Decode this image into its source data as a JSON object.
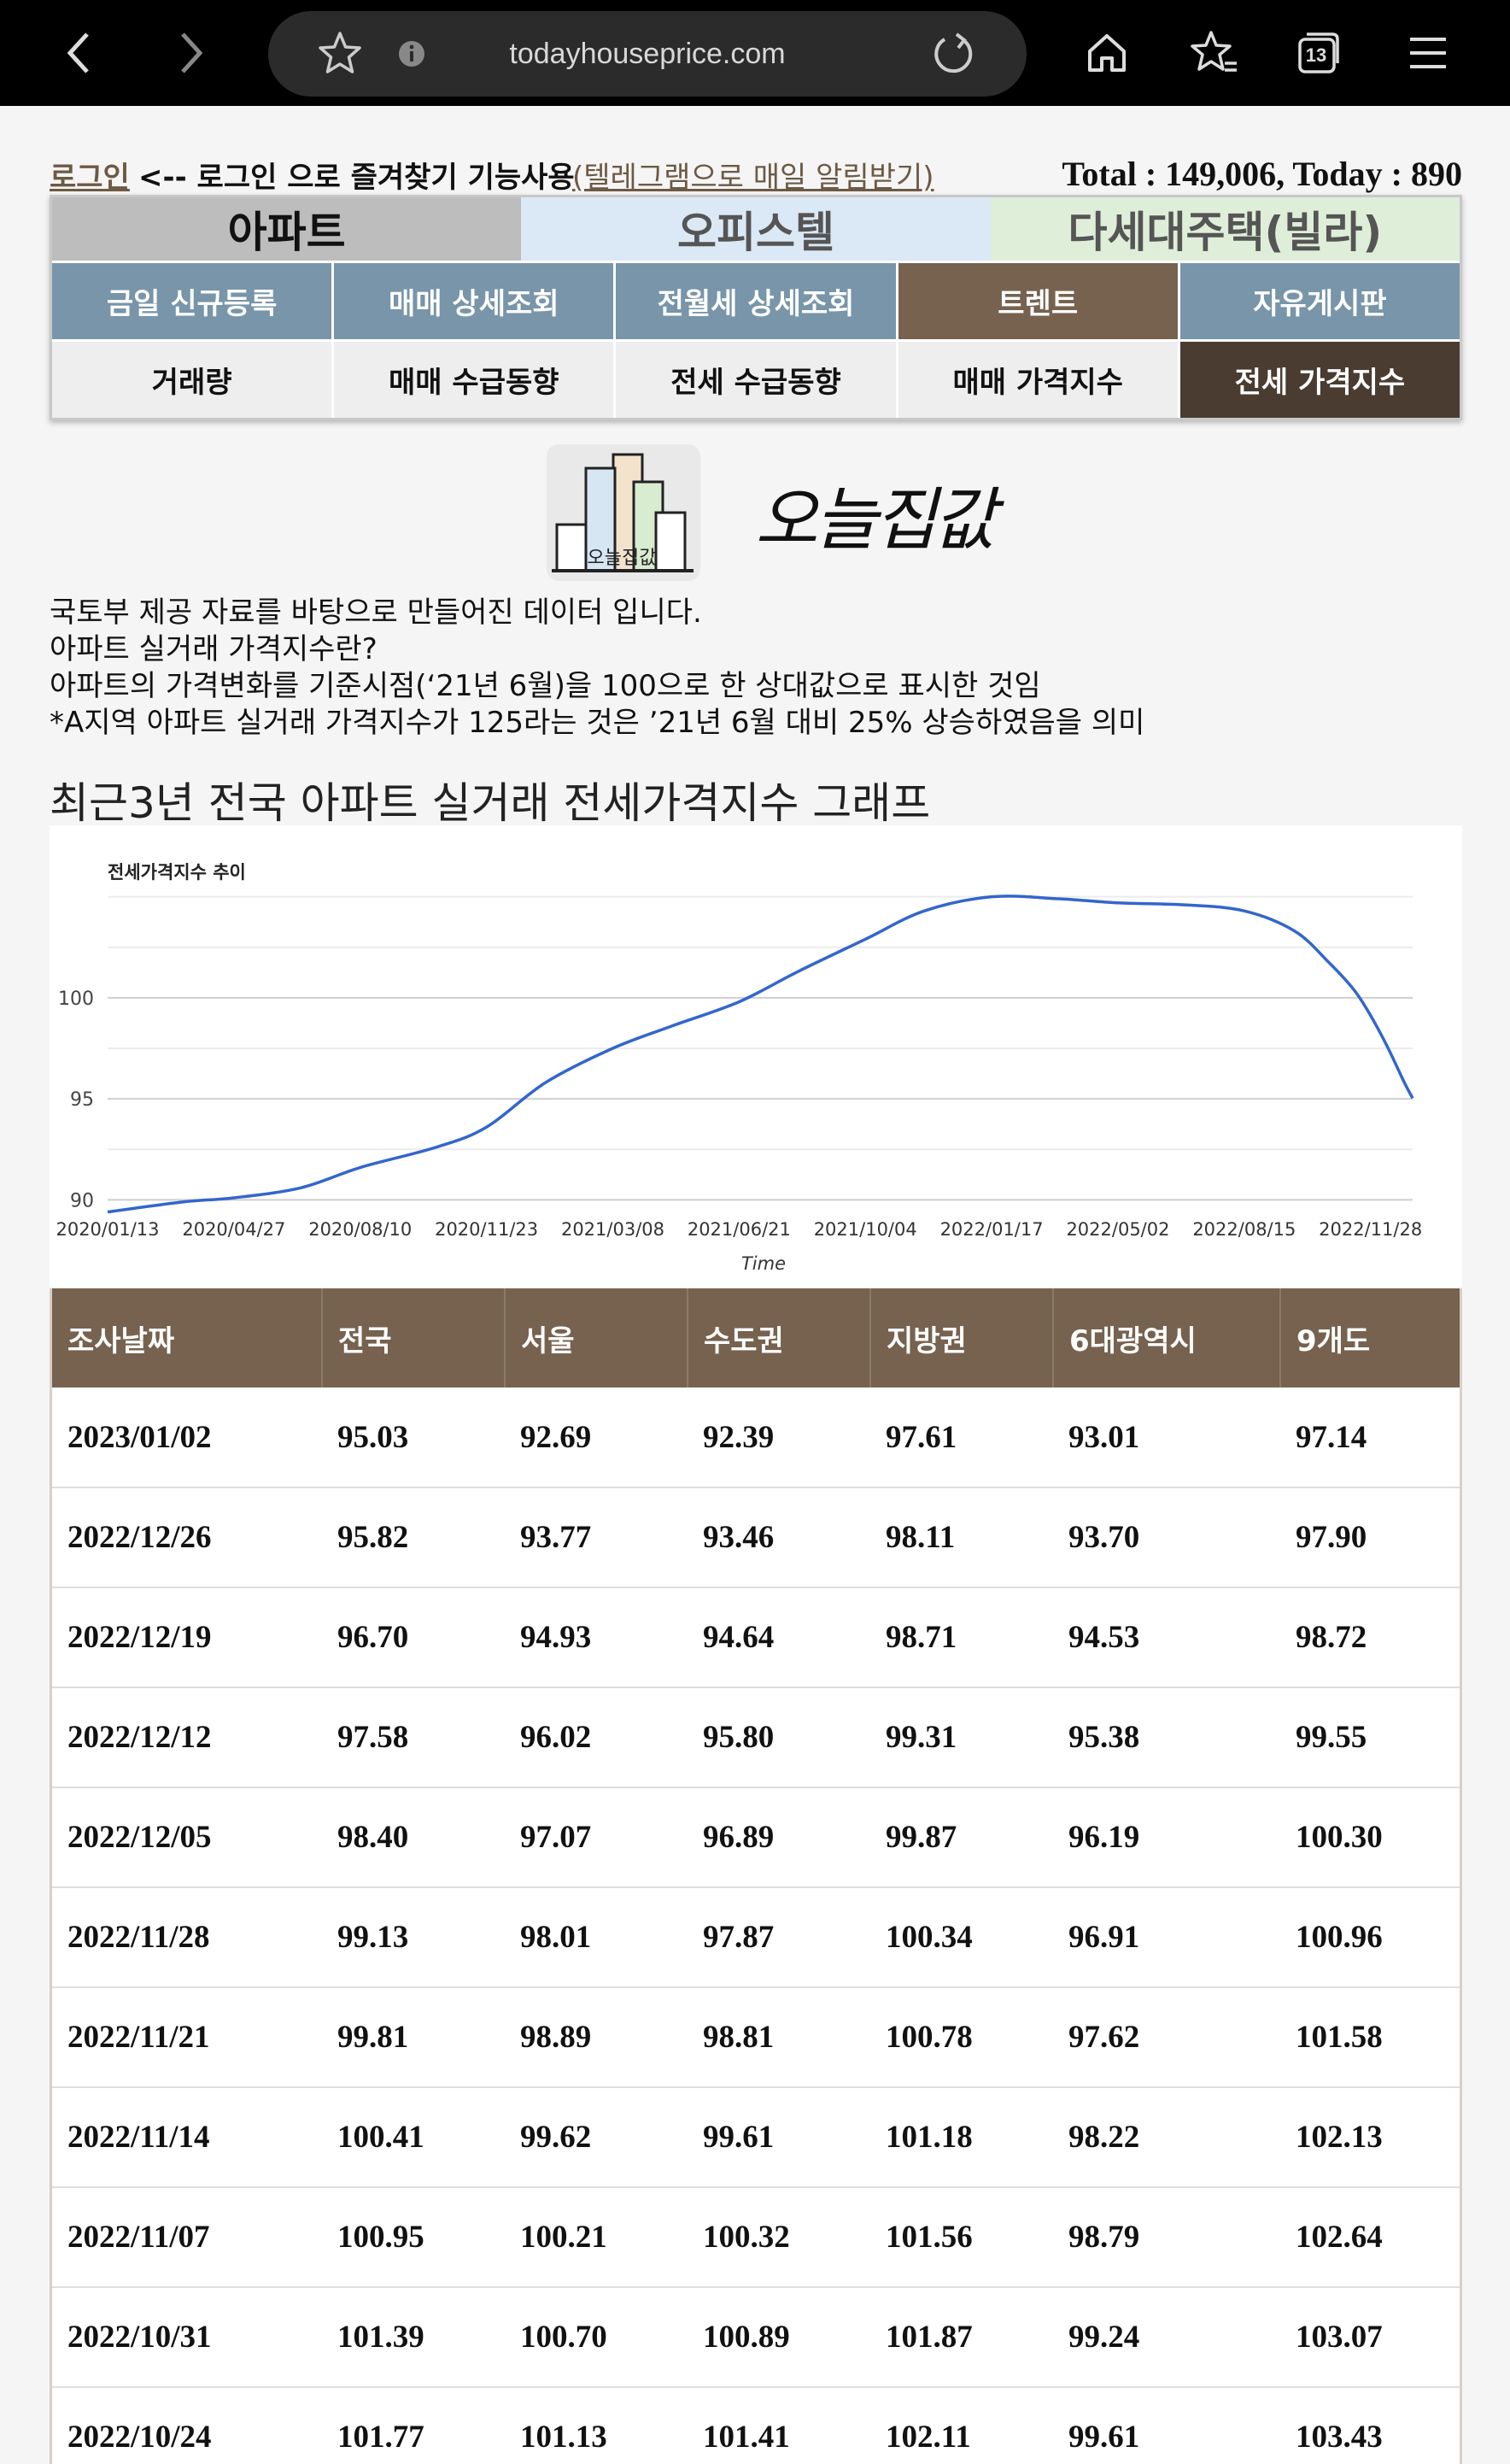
{
  "browser": {
    "url": "todayhouseprice.com",
    "tab_count": "13"
  },
  "topbar": {
    "login": "로그인",
    "login_hint": "<-- 로그인 으로 즐겨찾기 기능사용",
    "telegram": "(텔레그램으로 매일 알림받기)",
    "counter": "Total : 149,006, Today : 890"
  },
  "nav": {
    "property_tabs": [
      "아파트",
      "오피스텔",
      "다세대주택(빌라)"
    ],
    "menu_tabs": [
      "금일 신규등록",
      "매매 상세조회",
      "전월세 상세조회",
      "트렌트",
      "자유게시판"
    ],
    "sub_tabs": [
      "거래량",
      "매매 수급동향",
      "전세 수급동향",
      "매매 가격지수",
      "전세 가격지수"
    ]
  },
  "logo": {
    "icon_text": "오늘집값",
    "text": "오늘집값"
  },
  "description": [
    "국토부 제공 자료를 바탕으로 만들어진 데이터 입니다.",
    "아파트 실거래 가격지수란?",
    "아파트의 가격변화를 기준시점(‘21년 6월)을 100으로 한 상대값으로 표시한 것임",
    "*A지역 아파트 실거래 가격지수가 125라는 것은 ’21년 6월 대비 25% 상승하였음을 의미"
  ],
  "section_title": "최근3년 전국 아파트 실거래 전세가격지수 그래프",
  "chart_data": {
    "type": "line",
    "title": "전세가격지수 추이",
    "xlabel": "Time",
    "ylabel": "",
    "ylim": [
      89,
      106
    ],
    "yticks": [
      90,
      95,
      100
    ],
    "xticks": [
      "2020/01/13",
      "2020/04/27",
      "2020/08/10",
      "2020/11/23",
      "2021/03/08",
      "2021/06/21",
      "2021/10/04",
      "2022/01/17",
      "2022/05/02",
      "2022/08/15",
      "2022/11/28"
    ],
    "grid": true,
    "series": [
      {
        "x": [
          "2020/01/13",
          "2020/03/16",
          "2020/04/27",
          "2020/06/22",
          "2020/08/10",
          "2020/10/12",
          "2020/11/23",
          "2021/01/11",
          "2021/03/08",
          "2021/04/26",
          "2021/06/21",
          "2021/08/09",
          "2021/10/04",
          "2021/11/22",
          "2022/01/17",
          "2022/03/14",
          "2022/05/02",
          "2022/06/27",
          "2022/08/15",
          "2022/09/26",
          "2022/10/24",
          "2022/11/14",
          "2022/11/28",
          "2022/12/12",
          "2022/12/26",
          "2023/01/02"
        ],
        "values": [
          89.4,
          89.9,
          90.1,
          90.6,
          91.6,
          92.6,
          93.6,
          95.8,
          97.5,
          98.6,
          99.8,
          101.3,
          102.9,
          104.3,
          105.0,
          104.9,
          104.7,
          104.6,
          104.3,
          103.3,
          101.77,
          100.41,
          99.13,
          97.58,
          95.82,
          95.03
        ],
        "color": "#3366cc"
      }
    ]
  },
  "table": {
    "headers": [
      "조사날짜",
      "전국",
      "서울",
      "수도권",
      "지방권",
      "6대광역시",
      "9개도"
    ],
    "rows": [
      [
        "2023/01/02",
        "95.03",
        "92.69",
        "92.39",
        "97.61",
        "93.01",
        "97.14"
      ],
      [
        "2022/12/26",
        "95.82",
        "93.77",
        "93.46",
        "98.11",
        "93.70",
        "97.90"
      ],
      [
        "2022/12/19",
        "96.70",
        "94.93",
        "94.64",
        "98.71",
        "94.53",
        "98.72"
      ],
      [
        "2022/12/12",
        "97.58",
        "96.02",
        "95.80",
        "99.31",
        "95.38",
        "99.55"
      ],
      [
        "2022/12/05",
        "98.40",
        "97.07",
        "96.89",
        "99.87",
        "96.19",
        "100.30"
      ],
      [
        "2022/11/28",
        "99.13",
        "98.01",
        "97.87",
        "100.34",
        "96.91",
        "100.96"
      ],
      [
        "2022/11/21",
        "99.81",
        "98.89",
        "98.81",
        "100.78",
        "97.62",
        "101.58"
      ],
      [
        "2022/11/14",
        "100.41",
        "99.62",
        "99.61",
        "101.18",
        "98.22",
        "102.13"
      ],
      [
        "2022/11/07",
        "100.95",
        "100.21",
        "100.32",
        "101.56",
        "98.79",
        "102.64"
      ],
      [
        "2022/10/31",
        "101.39",
        "100.70",
        "100.89",
        "101.87",
        "99.24",
        "103.07"
      ],
      [
        "2022/10/24",
        "101.77",
        "101.13",
        "101.41",
        "102.11",
        "99.61",
        "103.43"
      ]
    ]
  }
}
